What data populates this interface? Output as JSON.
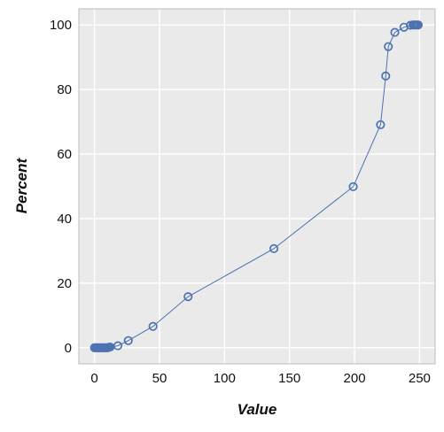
{
  "chart_data": {
    "type": "line",
    "title": "",
    "xlabel": "Value",
    "ylabel": "Percent",
    "xlim": [
      -12,
      262
    ],
    "ylim": [
      -5,
      105
    ],
    "xticks": [
      0,
      50,
      100,
      150,
      200,
      250
    ],
    "yticks": [
      0,
      20,
      40,
      60,
      80,
      100
    ],
    "grid": true,
    "series": [
      {
        "line_color": "#4c72b0",
        "marker": "open-circle",
        "x": [
          0,
          1,
          2,
          3,
          4,
          5,
          6,
          7,
          8,
          9,
          10,
          11,
          12,
          18,
          26,
          45,
          72,
          138,
          199,
          220,
          224,
          226,
          231,
          238,
          243,
          245,
          246,
          247,
          248,
          249
        ],
        "y": [
          0,
          0,
          0,
          0,
          0,
          0,
          0,
          0,
          0,
          0,
          0,
          0.1,
          0.2,
          0.6,
          2.2,
          6.6,
          15.8,
          30.7,
          49.9,
          69.1,
          84.2,
          93.3,
          97.7,
          99.3,
          99.9,
          100,
          100,
          100,
          100,
          100
        ]
      }
    ]
  }
}
